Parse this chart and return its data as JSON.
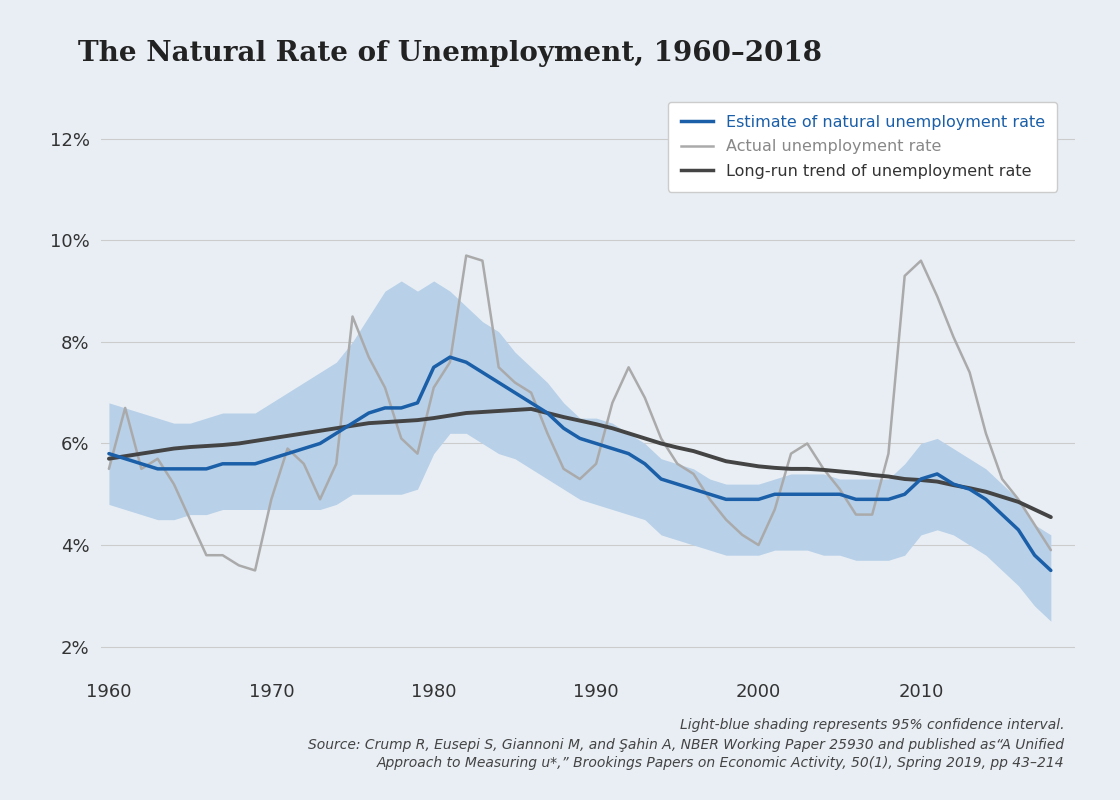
{
  "title": "The Natural Rate of Unemployment, 1960–2018",
  "background_color": "#e8eef4",
  "plot_background_color": "#e8eef4",
  "ytick_labels": [
    "2%",
    "4%",
    "6%",
    "8%",
    "10%",
    "12%"
  ],
  "ytick_values": [
    2,
    4,
    6,
    8,
    10,
    12
  ],
  "ylim": [
    1.5,
    13.0
  ],
  "xlim": [
    1959.5,
    2019.5
  ],
  "xtick_values": [
    1960,
    1970,
    1980,
    1990,
    2000,
    2010
  ],
  "footer_line1": "Light-blue shading represents 95% confidence interval.",
  "footer_line2": "Source: Crump R, Eusepi S, Giannoni M, and Şahin A, NBER Working Paper 25930 and published as“A Unified",
  "footer_line3": "Approach to Measuring u*,” Brookings Papers on Economic Activity, 50(1), Spring 2019, pp 43–214",
  "natural_color": "#1a5fa8",
  "actual_color": "#aaaaaa",
  "trend_color": "#444444",
  "ci_color": "#b8d0e8",
  "legend_natural": "Estimate of natural unemployment rate",
  "legend_actual": "Actual unemployment rate",
  "legend_trend": "Long-run trend of unemployment rate",
  "years": [
    1960,
    1961,
    1962,
    1963,
    1964,
    1965,
    1966,
    1967,
    1968,
    1969,
    1970,
    1971,
    1972,
    1973,
    1974,
    1975,
    1976,
    1977,
    1978,
    1979,
    1980,
    1981,
    1982,
    1983,
    1984,
    1985,
    1986,
    1987,
    1988,
    1989,
    1990,
    1991,
    1992,
    1993,
    1994,
    1995,
    1996,
    1997,
    1998,
    1999,
    2000,
    2001,
    2002,
    2003,
    2004,
    2005,
    2006,
    2007,
    2008,
    2009,
    2010,
    2011,
    2012,
    2013,
    2014,
    2015,
    2016,
    2017,
    2018
  ],
  "natural_rate": [
    5.8,
    5.7,
    5.6,
    5.5,
    5.5,
    5.5,
    5.5,
    5.6,
    5.6,
    5.6,
    5.7,
    5.8,
    5.9,
    6.0,
    6.2,
    6.4,
    6.6,
    6.7,
    6.7,
    6.8,
    7.5,
    7.7,
    7.6,
    7.4,
    7.2,
    7.0,
    6.8,
    6.6,
    6.3,
    6.1,
    6.0,
    5.9,
    5.8,
    5.6,
    5.3,
    5.2,
    5.1,
    5.0,
    4.9,
    4.9,
    4.9,
    5.0,
    5.0,
    5.0,
    5.0,
    5.0,
    4.9,
    4.9,
    4.9,
    5.0,
    5.3,
    5.4,
    5.2,
    5.1,
    4.9,
    4.6,
    4.3,
    3.8,
    3.5
  ],
  "natural_ci_upper": [
    6.8,
    6.7,
    6.6,
    6.5,
    6.4,
    6.4,
    6.5,
    6.6,
    6.6,
    6.6,
    6.8,
    7.0,
    7.2,
    7.4,
    7.6,
    8.0,
    8.5,
    9.0,
    9.2,
    9.0,
    9.2,
    9.0,
    8.7,
    8.4,
    8.2,
    7.8,
    7.5,
    7.2,
    6.8,
    6.5,
    6.5,
    6.4,
    6.2,
    6.0,
    5.7,
    5.6,
    5.5,
    5.3,
    5.2,
    5.2,
    5.2,
    5.3,
    5.4,
    5.4,
    5.4,
    5.3,
    5.3,
    5.3,
    5.3,
    5.6,
    6.0,
    6.1,
    5.9,
    5.7,
    5.5,
    5.2,
    4.9,
    4.4,
    4.2
  ],
  "natural_ci_lower": [
    4.8,
    4.7,
    4.6,
    4.5,
    4.5,
    4.6,
    4.6,
    4.7,
    4.7,
    4.7,
    4.7,
    4.7,
    4.7,
    4.7,
    4.8,
    5.0,
    5.0,
    5.0,
    5.0,
    5.1,
    5.8,
    6.2,
    6.2,
    6.0,
    5.8,
    5.7,
    5.5,
    5.3,
    5.1,
    4.9,
    4.8,
    4.7,
    4.6,
    4.5,
    4.2,
    4.1,
    4.0,
    3.9,
    3.8,
    3.8,
    3.8,
    3.9,
    3.9,
    3.9,
    3.8,
    3.8,
    3.7,
    3.7,
    3.7,
    3.8,
    4.2,
    4.3,
    4.2,
    4.0,
    3.8,
    3.5,
    3.2,
    2.8,
    2.5
  ],
  "actual_rate": [
    5.5,
    6.7,
    5.5,
    5.7,
    5.2,
    4.5,
    3.8,
    3.8,
    3.6,
    3.5,
    4.9,
    5.9,
    5.6,
    4.9,
    5.6,
    8.5,
    7.7,
    7.1,
    6.1,
    5.8,
    7.1,
    7.6,
    9.7,
    9.6,
    7.5,
    7.2,
    7.0,
    6.2,
    5.5,
    5.3,
    5.6,
    6.8,
    7.5,
    6.9,
    6.1,
    5.6,
    5.4,
    4.9,
    4.5,
    4.2,
    4.0,
    4.7,
    5.8,
    6.0,
    5.5,
    5.1,
    4.6,
    4.6,
    5.8,
    9.3,
    9.6,
    8.9,
    8.1,
    7.4,
    6.2,
    5.3,
    4.9,
    4.4,
    3.9
  ],
  "trend_rate": [
    5.7,
    5.75,
    5.8,
    5.85,
    5.9,
    5.93,
    5.95,
    5.97,
    6.0,
    6.05,
    6.1,
    6.15,
    6.2,
    6.25,
    6.3,
    6.35,
    6.4,
    6.42,
    6.44,
    6.46,
    6.5,
    6.55,
    6.6,
    6.62,
    6.64,
    6.66,
    6.68,
    6.6,
    6.52,
    6.45,
    6.38,
    6.3,
    6.2,
    6.1,
    6.0,
    5.92,
    5.85,
    5.75,
    5.65,
    5.6,
    5.55,
    5.52,
    5.5,
    5.5,
    5.48,
    5.45,
    5.42,
    5.38,
    5.35,
    5.3,
    5.28,
    5.25,
    5.18,
    5.12,
    5.05,
    4.95,
    4.85,
    4.7,
    4.55
  ]
}
